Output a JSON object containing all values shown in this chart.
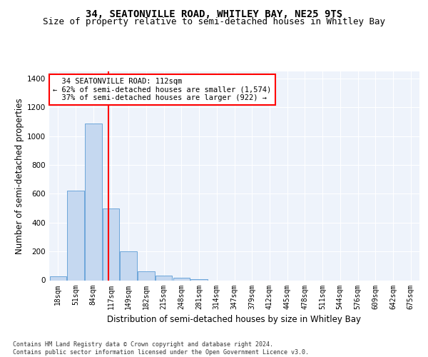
{
  "title1": "34, SEATONVILLE ROAD, WHITLEY BAY, NE25 9TS",
  "title2": "Size of property relative to semi-detached houses in Whitley Bay",
  "xlabel": "Distribution of semi-detached houses by size in Whitley Bay",
  "ylabel": "Number of semi-detached properties",
  "footnote": "Contains HM Land Registry data © Crown copyright and database right 2024.\nContains public sector information licensed under the Open Government Licence v3.0.",
  "bin_labels": [
    "18sqm",
    "51sqm",
    "84sqm",
    "117sqm",
    "149sqm",
    "182sqm",
    "215sqm",
    "248sqm",
    "281sqm",
    "314sqm",
    "347sqm",
    "379sqm",
    "412sqm",
    "445sqm",
    "478sqm",
    "511sqm",
    "544sqm",
    "576sqm",
    "609sqm",
    "642sqm",
    "675sqm"
  ],
  "bar_values": [
    25,
    620,
    1090,
    500,
    200,
    60,
    30,
    15,
    8,
    0,
    0,
    0,
    0,
    0,
    0,
    0,
    0,
    0,
    0,
    0,
    0
  ],
  "bar_color": "#c5d8f0",
  "bar_edge_color": "#5b9bd5",
  "vline_x_index": 2.85,
  "vline_color": "red",
  "property_size": "112sqm",
  "property_name": "34 SEATONVILLE ROAD",
  "pct_smaller": "62%",
  "n_smaller": "1,574",
  "pct_larger": "37%",
  "n_larger": "922",
  "ylim": [
    0,
    1450
  ],
  "yticks": [
    0,
    200,
    400,
    600,
    800,
    1000,
    1200,
    1400
  ],
  "bg_color": "#eef3fb",
  "grid_color": "#ffffff",
  "title_fontsize": 10,
  "subtitle_fontsize": 9,
  "axis_label_fontsize": 8.5,
  "tick_fontsize": 7,
  "annot_fontsize": 7.5,
  "footnote_fontsize": 6
}
